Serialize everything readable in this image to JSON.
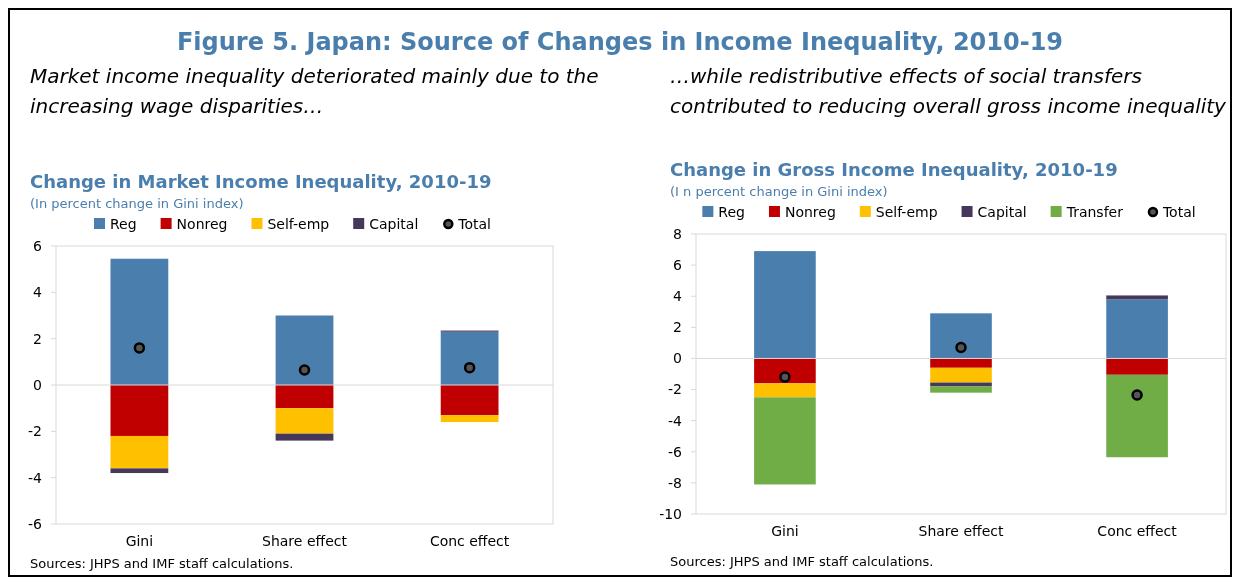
{
  "chart_data": [
    {
      "type": "other",
      "title": "Figure 5. Japan: Source of Changes in Income Inequality, 2010-19"
    },
    {
      "type": "bar",
      "stacked": true,
      "title": "Change in Market Income Inequality, 2010-19",
      "subtitle": "(In percent change in Gini index)",
      "annotations": [
        "Market income inequality deteriorated mainly due to the increasing wage disparities…",
        "Sources: JHPS and IMF staff calculations."
      ],
      "categories": [
        "Gini",
        "Share effect",
        "Conc effect"
      ],
      "ylim": [
        -6,
        6
      ],
      "yticks": [
        -6,
        -4,
        -2,
        0,
        2,
        4,
        6
      ],
      "legend": "top",
      "series": [
        {
          "name": "Reg",
          "color": "#4a7ead",
          "values": [
            5.45,
            3.0,
            2.3
          ]
        },
        {
          "name": "Nonreg",
          "color": "#c00000",
          "values": [
            -2.2,
            -1.0,
            -1.3
          ]
        },
        {
          "name": "Self-emp",
          "color": "#ffc000",
          "values": [
            -1.4,
            -1.1,
            -0.3
          ]
        },
        {
          "name": "Capital",
          "color": "#45385a",
          "values": [
            -0.2,
            -0.3,
            0.05
          ]
        },
        {
          "name": "Total",
          "type": "scatter",
          "marker": "circle",
          "color": "#000000",
          "values": [
            1.6,
            0.65,
            0.75
          ]
        }
      ]
    },
    {
      "type": "bar",
      "stacked": true,
      "title": "Change in Gross Income Inequality, 2010-19",
      "subtitle": "(I n percent change in Gini index)",
      "annotations": [
        "…while redistributive effects of social transfers contributed to reducing overall gross income inequality",
        "Sources: JHPS and IMF staff calculations."
      ],
      "categories": [
        "Gini",
        "Share effect",
        "Conc effect"
      ],
      "ylim": [
        -10,
        8
      ],
      "yticks": [
        -10,
        -8,
        -6,
        -4,
        -2,
        0,
        2,
        4,
        6,
        8
      ],
      "legend": "top",
      "series": [
        {
          "name": "Reg",
          "color": "#4a7ead",
          "values": [
            6.9,
            2.9,
            3.8
          ]
        },
        {
          "name": "Nonreg",
          "color": "#c00000",
          "values": [
            -1.6,
            -0.6,
            -1.05
          ]
        },
        {
          "name": "Self-emp",
          "color": "#ffc000",
          "values": [
            -0.9,
            -0.95,
            0
          ]
        },
        {
          "name": "Capital",
          "color": "#45385a",
          "values": [
            0,
            -0.25,
            0.25
          ]
        },
        {
          "name": "Transfer",
          "color": "#70ad47",
          "values": [
            -5.6,
            -0.4,
            -5.3
          ]
        },
        {
          "name": "Total",
          "type": "scatter",
          "marker": "circle",
          "color": "#000000",
          "values": [
            -1.2,
            0.7,
            -2.35
          ]
        }
      ]
    }
  ]
}
